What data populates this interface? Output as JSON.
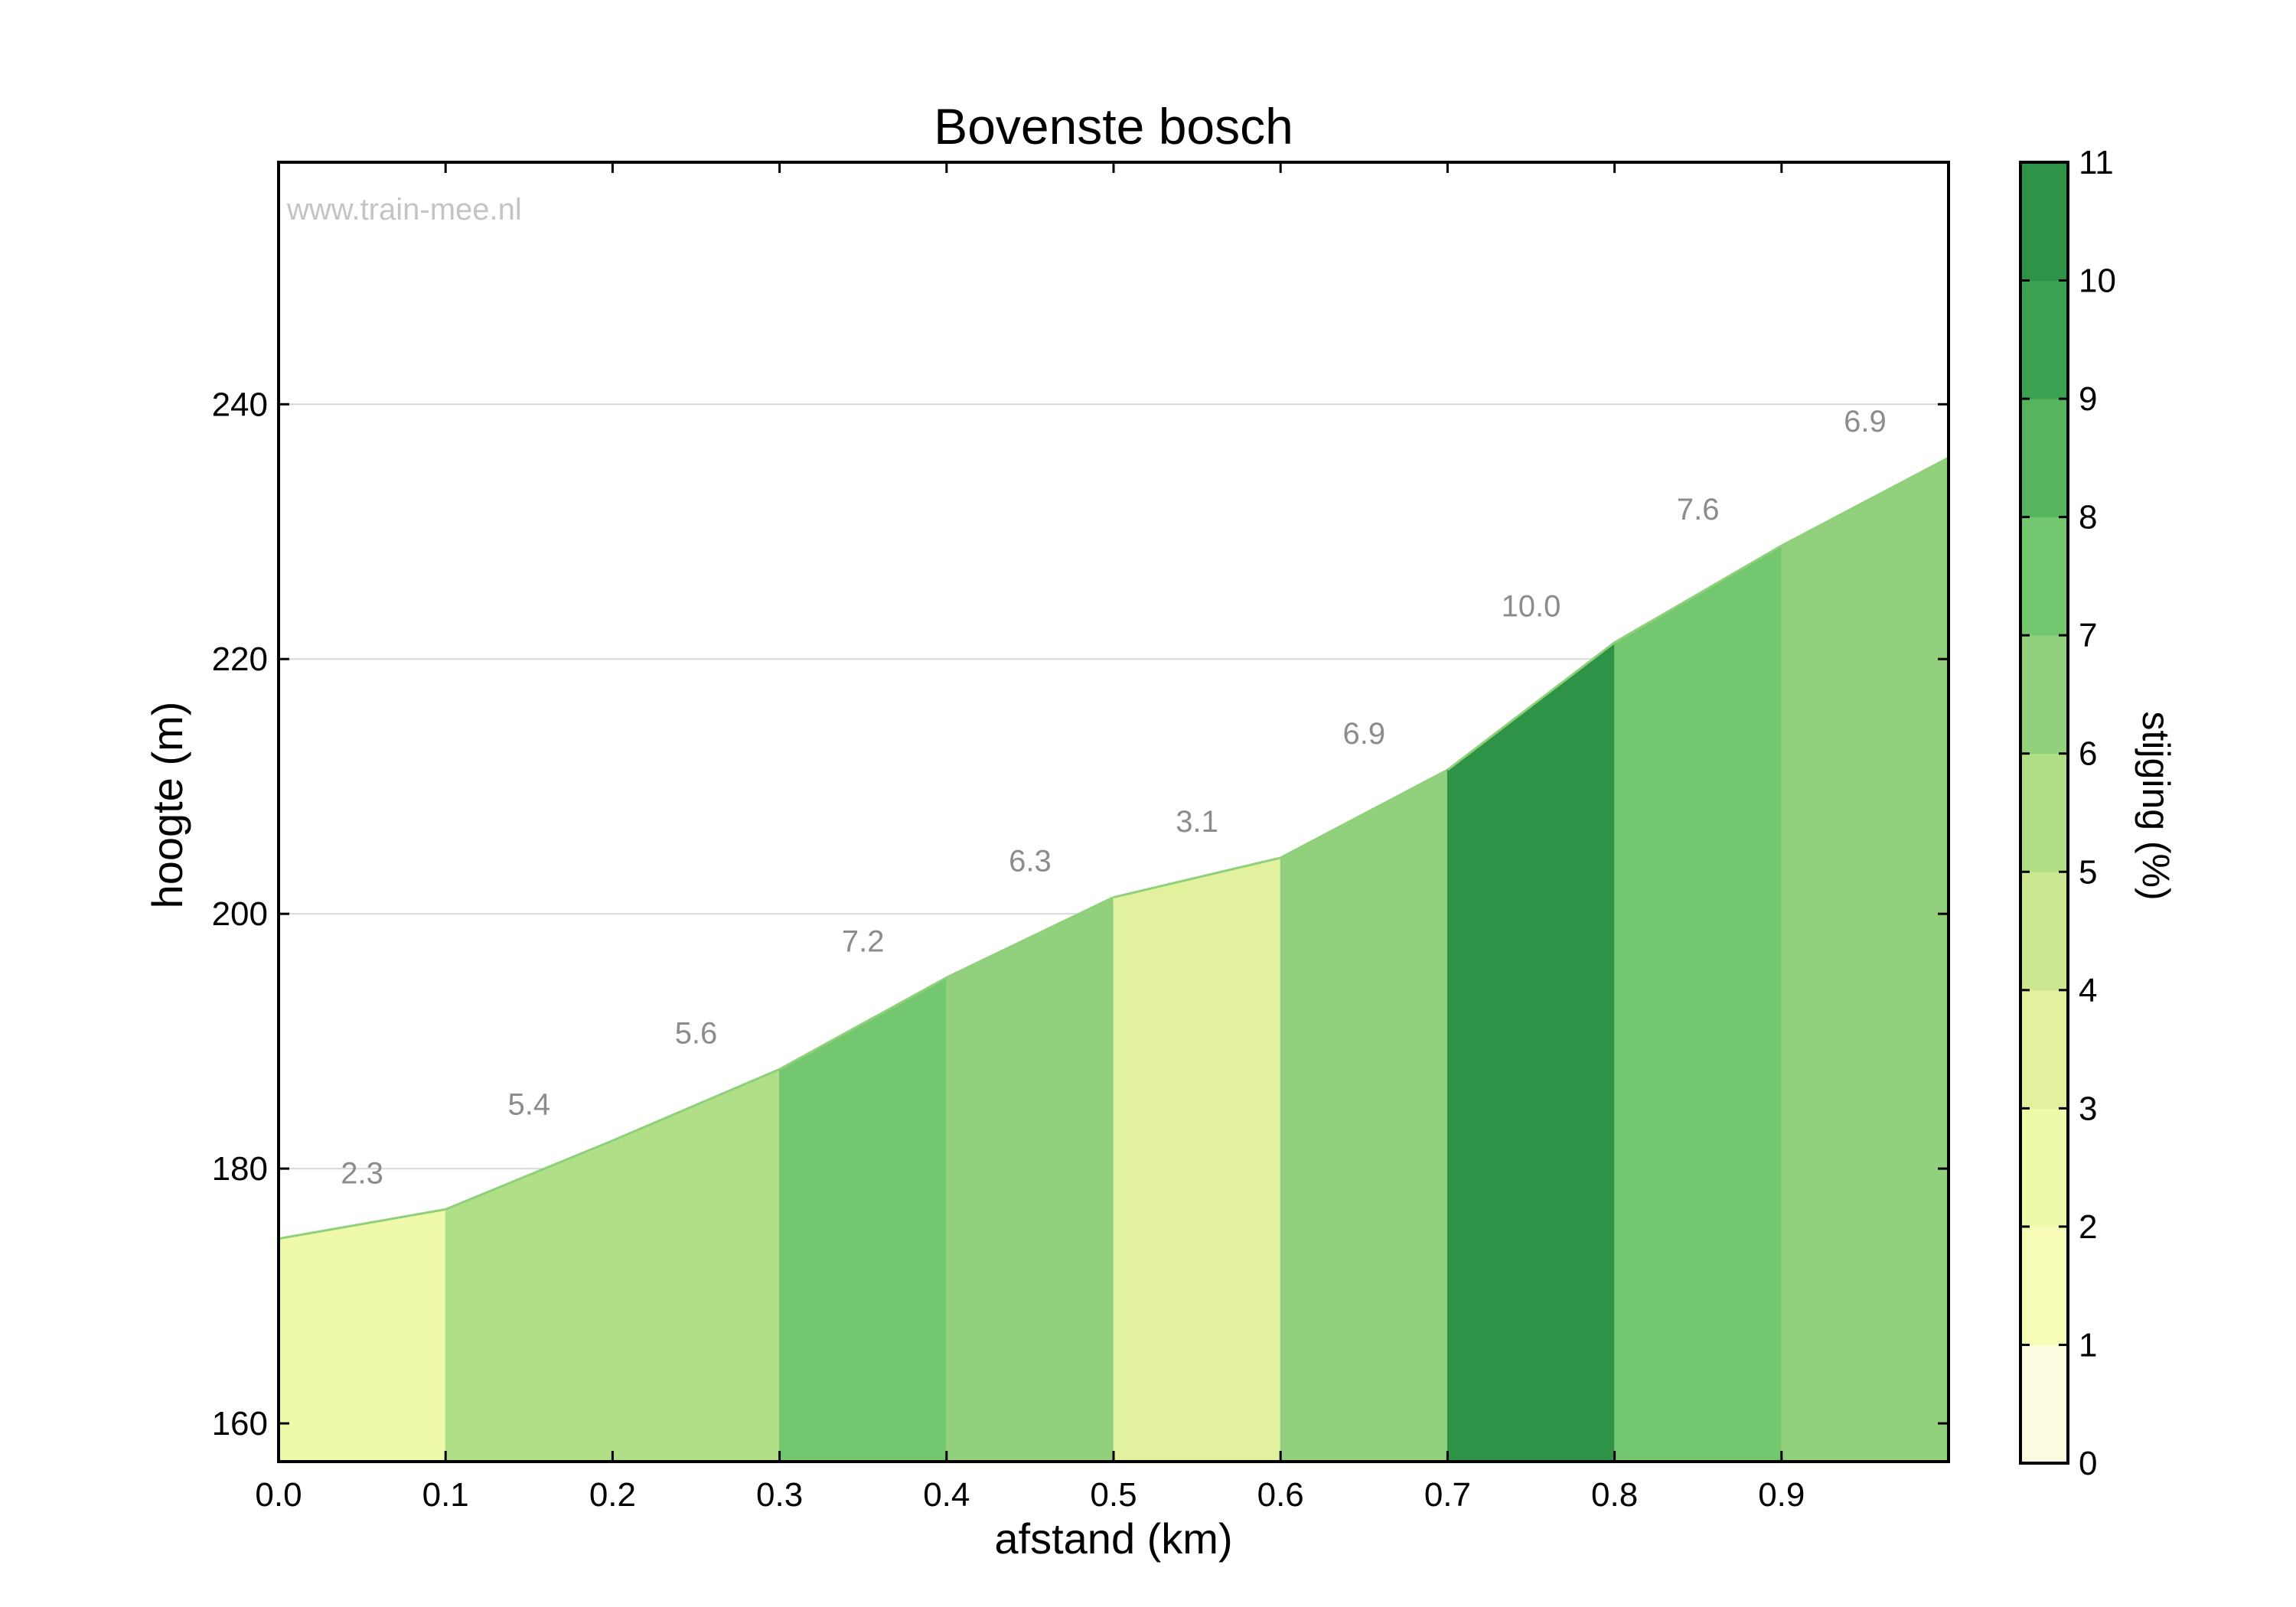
{
  "watermark": "www.train-mee.nl",
  "chart_data": {
    "type": "area",
    "title": "Bovenste bosch",
    "xlabel": "afstand (km)",
    "ylabel": "hoogte (m)",
    "xlim": [
      0,
      1.0
    ],
    "ylim": [
      157,
      259
    ],
    "grid": "horizontal",
    "x_ticks": [
      "0.0",
      "0.1",
      "0.2",
      "0.3",
      "0.4",
      "0.5",
      "0.6",
      "0.7",
      "0.8",
      "0.9"
    ],
    "y_ticks": [
      160,
      180,
      200,
      220,
      240
    ],
    "segments": [
      {
        "x0": 0.0,
        "x1": 0.1,
        "y0": 174.5,
        "y1": 176.8,
        "grade": 2.3,
        "label": "2.3"
      },
      {
        "x0": 0.1,
        "x1": 0.2,
        "y0": 176.8,
        "y1": 182.2,
        "grade": 5.4,
        "label": "5.4"
      },
      {
        "x0": 0.2,
        "x1": 0.3,
        "y0": 182.2,
        "y1": 187.8,
        "grade": 5.6,
        "label": "5.6"
      },
      {
        "x0": 0.3,
        "x1": 0.4,
        "y0": 187.8,
        "y1": 195.0,
        "grade": 7.2,
        "label": "7.2"
      },
      {
        "x0": 0.4,
        "x1": 0.5,
        "y0": 195.0,
        "y1": 201.3,
        "grade": 6.3,
        "label": "6.3"
      },
      {
        "x0": 0.5,
        "x1": 0.6,
        "y0": 201.3,
        "y1": 204.4,
        "grade": 3.1,
        "label": "3.1"
      },
      {
        "x0": 0.6,
        "x1": 0.7,
        "y0": 204.4,
        "y1": 211.3,
        "grade": 6.9,
        "label": "6.9"
      },
      {
        "x0": 0.7,
        "x1": 0.8,
        "y0": 211.3,
        "y1": 221.3,
        "grade": 10.0,
        "label": "10.0"
      },
      {
        "x0": 0.8,
        "x1": 0.9,
        "y0": 221.3,
        "y1": 228.9,
        "grade": 7.6,
        "label": "7.6"
      },
      {
        "x0": 0.9,
        "x1": 1.0,
        "y0": 228.9,
        "y1": 235.8,
        "grade": 6.9,
        "label": "6.9"
      }
    ],
    "colorbar": {
      "label": "stijging (%)",
      "min": 0,
      "max": 11,
      "ticks": [
        0,
        1,
        2,
        3,
        4,
        5,
        6,
        7,
        8,
        9,
        10,
        11
      ],
      "colors": [
        "#fdfde2",
        "#f6fbb8",
        "#eefaa9",
        "#e1f19d",
        "#cbe891",
        "#b1df87",
        "#93d07d",
        "#73c76f",
        "#56b45e",
        "#3aa251",
        "#2e9247"
      ]
    }
  }
}
